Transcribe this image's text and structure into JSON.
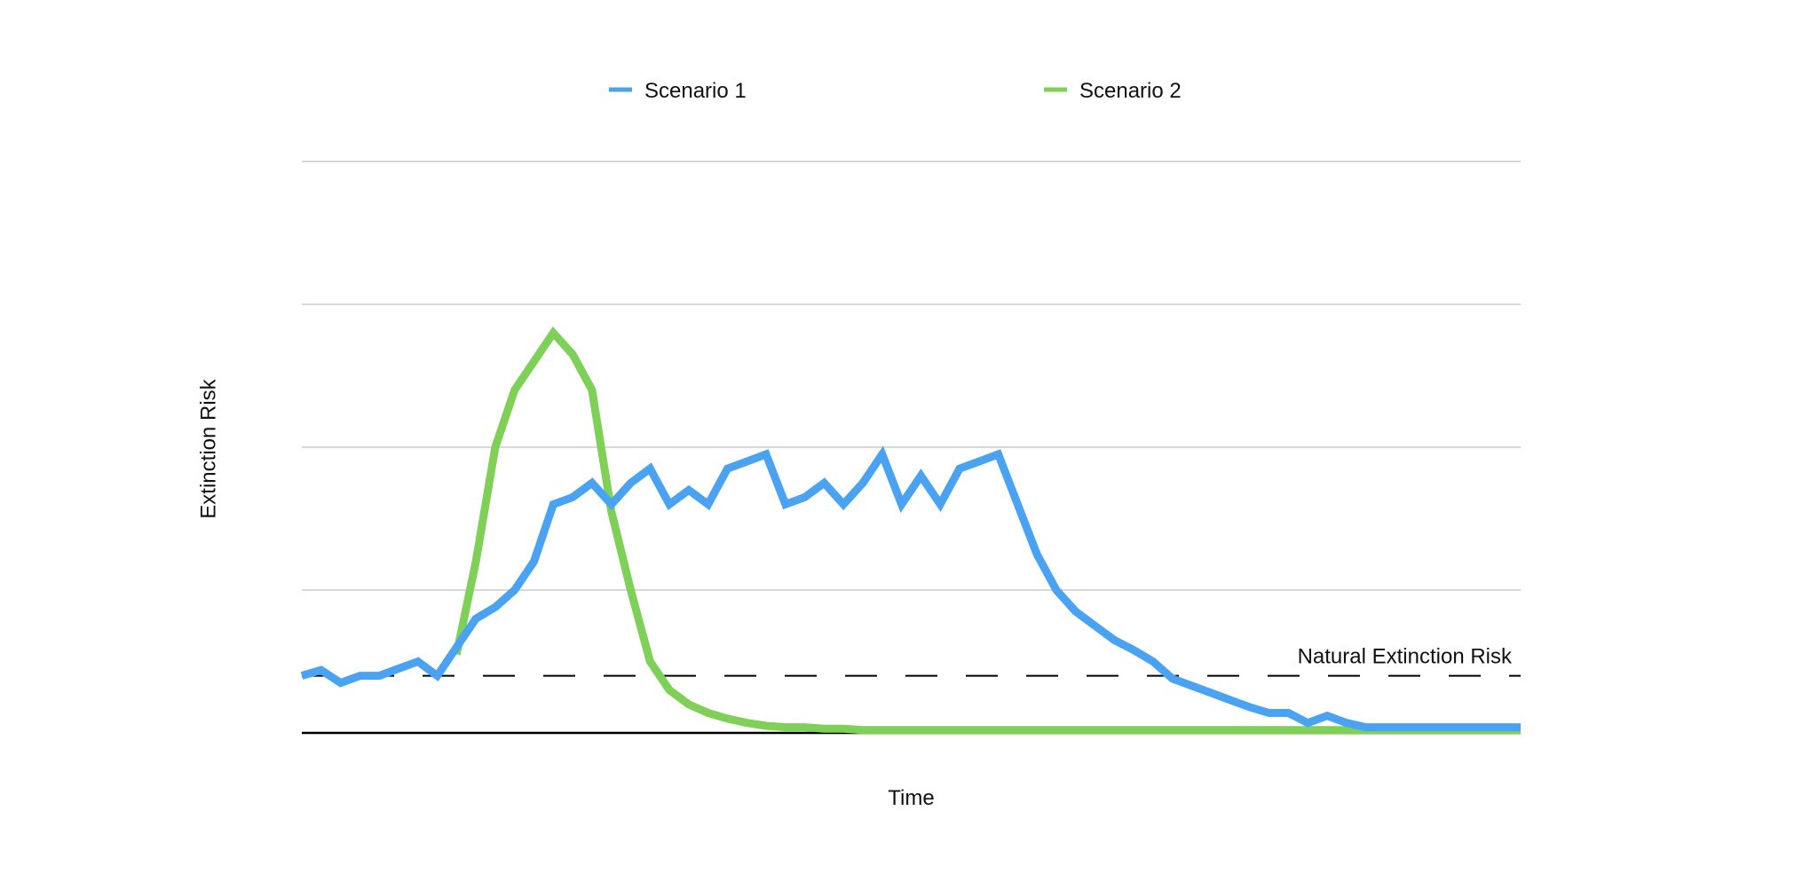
{
  "chart_data": {
    "type": "line",
    "xlabel": "Time",
    "ylabel": "Extinction Risk",
    "x": [
      0,
      1,
      2,
      3,
      4,
      5,
      6,
      7,
      8,
      9,
      10,
      11,
      12,
      13,
      14,
      15,
      16,
      17,
      18,
      19,
      20,
      21,
      22,
      23,
      24,
      25,
      26,
      27,
      28,
      29,
      30,
      31,
      32,
      33,
      34,
      35,
      36,
      37,
      38,
      39,
      40,
      41,
      42,
      43,
      44,
      45,
      46,
      47,
      48,
      49,
      50,
      51,
      52,
      53,
      54,
      55,
      56,
      57,
      58,
      59,
      60,
      61,
      62,
      63
    ],
    "xlim": [
      0,
      63
    ],
    "ylim": [
      0,
      4
    ],
    "grid": true,
    "legend_position": "top",
    "colors": {
      "scenario1": "#4aa3f2",
      "scenario2": "#7ed056",
      "grid": "#cccccc",
      "baseline": "#000000",
      "natural": "#000000"
    },
    "series": [
      {
        "name": "Scenario 1",
        "color": "#4aa3f2",
        "values": [
          0.4,
          0.44,
          0.35,
          0.4,
          0.4,
          0.45,
          0.5,
          0.4,
          0.6,
          0.8,
          0.88,
          1.0,
          1.2,
          1.6,
          1.65,
          1.75,
          1.6,
          1.75,
          1.85,
          1.6,
          1.7,
          1.6,
          1.85,
          1.9,
          1.95,
          1.6,
          1.65,
          1.75,
          1.6,
          1.75,
          1.95,
          1.6,
          1.8,
          1.6,
          1.85,
          1.9,
          1.95,
          1.6,
          1.25,
          1.0,
          0.85,
          0.75,
          0.65,
          0.58,
          0.5,
          0.38,
          0.33,
          0.28,
          0.23,
          0.18,
          0.14,
          0.14,
          0.07,
          0.12,
          0.07,
          0.04,
          0.04,
          0.04,
          0.04,
          0.04,
          0.04,
          0.04,
          0.04,
          0.04
        ]
      },
      {
        "name": "Scenario 2",
        "color": "#7ed056",
        "values": [
          null,
          null,
          null,
          null,
          null,
          null,
          null,
          null,
          0.55,
          1.2,
          2.0,
          2.4,
          2.6,
          2.8,
          2.65,
          2.4,
          1.55,
          1.0,
          0.5,
          0.3,
          0.2,
          0.14,
          0.1,
          0.07,
          0.05,
          0.04,
          0.04,
          0.03,
          0.03,
          0.02,
          0.02,
          0.02,
          0.02,
          0.02,
          0.02,
          0.02,
          0.02,
          0.02,
          0.02,
          0.02,
          0.02,
          0.02,
          0.02,
          0.02,
          0.02,
          0.02,
          0.02,
          0.02,
          0.02,
          0.02,
          0.02,
          0.02,
          0.02,
          0.02,
          0.02,
          0.02,
          0.02,
          0.02,
          0.02,
          0.02,
          0.02,
          0.02,
          0.02,
          0.02
        ]
      }
    ],
    "reference_line": {
      "label": "Natural Extinction Risk",
      "value": 0.4,
      "style": "dashed"
    }
  }
}
